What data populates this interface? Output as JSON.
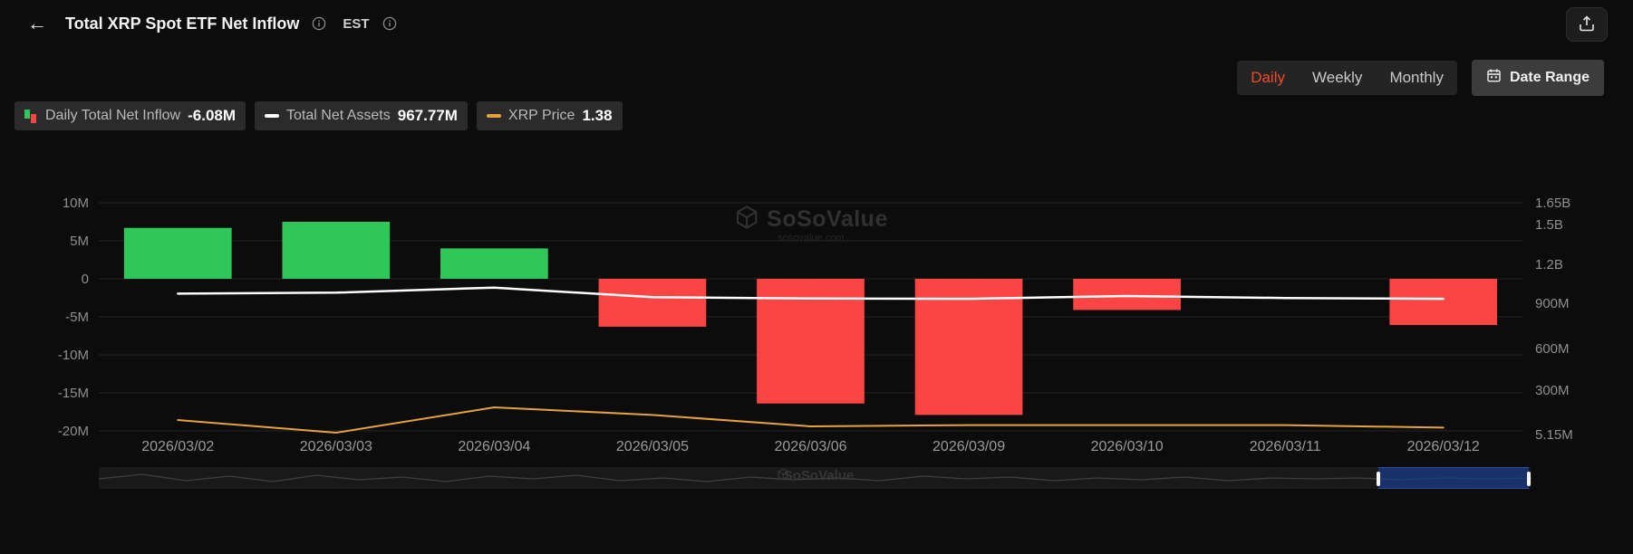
{
  "header": {
    "back_icon": "←",
    "title": "Total XRP Spot ETF Net Inflow",
    "timezone": "EST"
  },
  "controls": {
    "tabs": [
      {
        "label": "Daily",
        "active": true
      },
      {
        "label": "Weekly",
        "active": false
      },
      {
        "label": "Monthly",
        "active": false
      }
    ],
    "date_range_label": "Date Range"
  },
  "legend": [
    {
      "name": "Daily Total Net Inflow",
      "value": "-6.08M"
    },
    {
      "name": "Total Net Assets",
      "value": "967.77M"
    },
    {
      "name": "XRP Price",
      "value": "1.38"
    }
  ],
  "watermark": {
    "name": "SoSoValue",
    "domain": "sosovalue.com"
  },
  "colors": {
    "accent": "#ee4b29",
    "green": "#2fc75a",
    "red": "#fb4444",
    "orange_line": "#e9a23b",
    "assets_line": "#ffffff"
  },
  "chart_data": {
    "type": "bar",
    "categories": [
      "2026/03/02",
      "2026/03/03",
      "2026/03/04",
      "2026/03/05",
      "2026/03/06",
      "2026/03/09",
      "2026/03/10",
      "2026/03/11",
      "2026/03/12"
    ],
    "series": [
      {
        "name": "Daily Total Net Inflow",
        "type": "bar",
        "unit": "M",
        "values": [
          6.7,
          7.5,
          4.0,
          -6.3,
          -16.4,
          -17.9,
          -4.1,
          0,
          -6.08
        ],
        "positive_color": "#2fc75a",
        "negative_color": "#fb4444"
      },
      {
        "name": "Total Net Assets",
        "type": "line",
        "unit": "M",
        "values": [
          1005,
          1012,
          1048,
          980,
          970,
          968,
          988,
          974,
          968
        ],
        "color": "#ffffff"
      },
      {
        "name": "XRP Price",
        "type": "line",
        "unit": "USD",
        "values": [
          1.41,
          1.36,
          1.46,
          1.43,
          1.385,
          1.39,
          1.39,
          1.39,
          1.38
        ],
        "color": "#e9a23b"
      }
    ],
    "left_axis": {
      "labels": [
        "10M",
        "5M",
        "0",
        "-5M",
        "-10M",
        "-15M",
        "-20M"
      ],
      "range_m": [
        -20,
        10
      ]
    },
    "right_axis": {
      "labels": [
        "1.65B",
        "1.5B",
        "1.2B",
        "900M",
        "600M",
        "300M",
        "5.15M"
      ]
    },
    "grid": true,
    "legend_position": "top-left"
  }
}
